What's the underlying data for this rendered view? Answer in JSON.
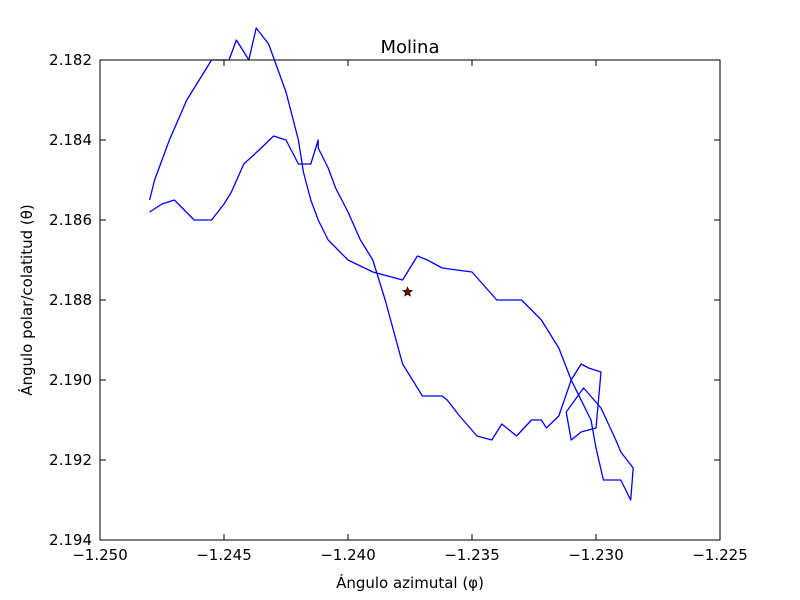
{
  "chart_data": {
    "type": "line",
    "title": "Molina",
    "xlabel": "Ángulo azimutal (φ)",
    "ylabel": "Ángulo polar/colatitud (θ)",
    "xlim": [
      -1.25,
      -1.225
    ],
    "ylim": [
      2.194,
      2.182
    ],
    "y_inverted": true,
    "grid": false,
    "xticks": [
      "−1.250",
      "−1.245",
      "−1.240",
      "−1.235",
      "−1.230",
      "−1.225"
    ],
    "yticks": [
      "2.182",
      "2.184",
      "2.186",
      "2.188",
      "2.190",
      "2.192",
      "2.194"
    ],
    "series": [
      {
        "color": "#0000ff",
        "x": [
          -1.248,
          -1.2478,
          -1.2472,
          -1.2465,
          -1.246,
          -1.2455,
          -1.2448,
          -1.2445,
          -1.244,
          -1.2437,
          -1.2432,
          -1.2425,
          -1.242,
          -1.2418,
          -1.2415,
          -1.2412,
          -1.2408,
          -1.24,
          -1.239,
          -1.2378,
          -1.2372,
          -1.2368,
          -1.2362,
          -1.235,
          -1.234,
          -1.233,
          -1.2322,
          -1.2315,
          -1.231,
          -1.2302,
          -1.23,
          -1.2297,
          -1.229,
          -1.2286,
          -1.2285,
          -1.229,
          -1.2292,
          -1.2298,
          -1.2305,
          -1.2312,
          -1.231,
          -1.2306,
          -1.23,
          -1.2298,
          -1.2303,
          -1.2306,
          -1.231,
          -1.2315,
          -1.232,
          -1.2322,
          -1.2326,
          -1.2332,
          -1.2338,
          -1.2342,
          -1.2348,
          -1.2355,
          -1.236,
          -1.2362,
          -1.2365,
          -1.237,
          -1.2378,
          -1.2385,
          -1.239,
          -1.2395,
          -1.24,
          -1.2405,
          -1.2408,
          -1.2412,
          -1.2412,
          -1.2415,
          -1.242,
          -1.2425,
          -1.243,
          -1.2435,
          -1.2442,
          -1.2447,
          -1.245,
          -1.2455,
          -1.2462,
          -1.247,
          -1.2475,
          -1.248
        ],
        "y": [
          2.1855,
          2.185,
          2.184,
          2.183,
          2.1825,
          2.182,
          2.182,
          2.1815,
          2.182,
          2.1812,
          2.1816,
          2.1828,
          2.184,
          2.1848,
          2.1855,
          2.186,
          2.1865,
          2.187,
          2.1873,
          2.1875,
          2.1869,
          2.187,
          2.1872,
          2.1873,
          2.188,
          2.188,
          2.1885,
          2.1892,
          2.19,
          2.191,
          2.1917,
          2.1925,
          2.1925,
          2.193,
          2.1922,
          2.1918,
          2.1915,
          2.1907,
          2.1902,
          2.1908,
          2.1915,
          2.1913,
          2.1912,
          2.1898,
          2.1897,
          2.1896,
          2.19,
          2.1909,
          2.1912,
          2.191,
          2.191,
          2.1914,
          2.1911,
          2.1915,
          2.1914,
          2.1909,
          2.1905,
          2.1904,
          2.1904,
          2.1904,
          2.1896,
          2.188,
          2.187,
          2.1865,
          2.1858,
          2.1852,
          2.1847,
          2.1842,
          2.184,
          2.1846,
          2.1846,
          2.184,
          2.1839,
          2.1842,
          2.1846,
          2.1853,
          2.1856,
          2.186,
          2.186,
          2.1855,
          2.1856,
          2.1858
        ]
      },
      {
        "color": "#800000",
        "marker": "star",
        "x": [
          -1.2376
        ],
        "y": [
          2.1878
        ]
      }
    ]
  }
}
